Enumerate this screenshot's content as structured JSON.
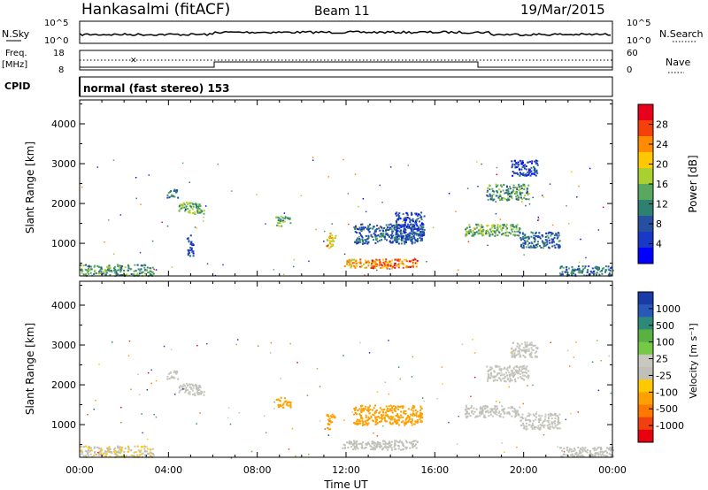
{
  "header": {
    "station": "Hankasalmi (fitACF)",
    "beam": "Beam 11",
    "date": "19/Mar/2015"
  },
  "noise_panel": {
    "left_label": "N.Sky",
    "right_label": "N.Search",
    "y_ticks": [
      "10^5",
      "10^0"
    ]
  },
  "freq_panel": {
    "left_label_1": "Freq.",
    "left_label_2": "[MHz]",
    "left_ticks": [
      "18",
      "8"
    ],
    "right_label": "Nave",
    "right_ticks": [
      "60",
      "0"
    ],
    "cpid_label": "CPID"
  },
  "cpid_text": "normal (fast stereo) 153",
  "x_axis": {
    "title": "Time UT",
    "ticks": [
      "00:00",
      "04:00",
      "08:00",
      "12:00",
      "16:00",
      "20:00",
      "00:00"
    ]
  },
  "y_axis_title": "Slant Range [km]",
  "y_ticks": [
    "4000",
    "3000",
    "2000",
    "1000"
  ],
  "power_colorbar": {
    "label": "Power [dB]",
    "ticks": [
      "28",
      "24",
      "20",
      "16",
      "12",
      "8",
      "4"
    ],
    "colors": [
      "#e8001c",
      "#f5400a",
      "#ff8c00",
      "#ffc800",
      "#a8d030",
      "#5aa860",
      "#2e8070",
      "#2850a0",
      "#1838c8",
      "#0000ff"
    ]
  },
  "velocity_colorbar": {
    "label": "Velocity [m s⁻¹]",
    "ticks": [
      "1000",
      "500",
      "100",
      "25",
      "-25",
      "-100",
      "-500",
      "-1000"
    ],
    "colors": [
      "#1a3aa8",
      "#2858b8",
      "#2e8a78",
      "#5ab040",
      "#78c848",
      "#c8c8c0",
      "#c0c0b8",
      "#ffc800",
      "#ffa000",
      "#ff7800",
      "#f04010",
      "#e80010"
    ]
  },
  "chart_data": [
    {
      "type": "heatmap",
      "title": "",
      "quantity": "Power",
      "ylabel": "Slant Range [km]",
      "xlabel": "",
      "x_range_hours": [
        0,
        24
      ],
      "ylim": [
        180,
        4600
      ],
      "clim": [
        0,
        30
      ],
      "patches": [
        {
          "t": [
            0.0,
            3.3
          ],
          "r": [
            200,
            480
          ],
          "v": 12
        },
        {
          "t": [
            3.9,
            4.4
          ],
          "r": [
            2150,
            2380
          ],
          "v": 10
        },
        {
          "t": [
            4.4,
            5.6
          ],
          "r": [
            1750,
            2050
          ],
          "v": 14
        },
        {
          "t": [
            4.8,
            5.1
          ],
          "r": [
            700,
            1250
          ],
          "v": 6
        },
        {
          "t": [
            8.8,
            9.5
          ],
          "r": [
            1450,
            1700
          ],
          "v": 14
        },
        {
          "t": [
            11.1,
            11.5
          ],
          "r": [
            900,
            1300
          ],
          "v": 20
        },
        {
          "t": [
            11.8,
            13.4
          ],
          "r": [
            400,
            620
          ],
          "v": 20
        },
        {
          "t": [
            13.1,
            15.2
          ],
          "r": [
            380,
            620
          ],
          "v": 24
        },
        {
          "t": [
            12.3,
            15.4
          ],
          "r": [
            1000,
            1500
          ],
          "v": 8
        },
        {
          "t": [
            14.2,
            15.5
          ],
          "r": [
            1100,
            1800
          ],
          "v": 6
        },
        {
          "t": [
            17.3,
            19.8
          ],
          "r": [
            1200,
            1500
          ],
          "v": 14
        },
        {
          "t": [
            18.3,
            20.2
          ],
          "r": [
            2100,
            2500
          ],
          "v": 12
        },
        {
          "t": [
            19.4,
            20.6
          ],
          "r": [
            2700,
            3100
          ],
          "v": 6
        },
        {
          "t": [
            19.8,
            21.6
          ],
          "r": [
            900,
            1300
          ],
          "v": 8
        },
        {
          "t": [
            21.6,
            24.0
          ],
          "r": [
            200,
            450
          ],
          "v": 10
        }
      ]
    },
    {
      "type": "heatmap",
      "title": "",
      "quantity": "Velocity",
      "ylabel": "Slant Range [km]",
      "xlabel": "Time UT",
      "x_range_hours": [
        0,
        24
      ],
      "ylim": [
        180,
        4600
      ],
      "clim": [
        -1000,
        1000
      ],
      "patches": [
        {
          "t": [
            0.0,
            3.3
          ],
          "r": [
            200,
            480
          ],
          "v": -150
        },
        {
          "t": [
            3.9,
            4.4
          ],
          "r": [
            2150,
            2380
          ],
          "v": 0
        },
        {
          "t": [
            4.4,
            5.6
          ],
          "r": [
            1750,
            2050
          ],
          "v": 0
        },
        {
          "t": [
            8.8,
            9.5
          ],
          "r": [
            1450,
            1700
          ],
          "v": -400
        },
        {
          "t": [
            11.1,
            11.5
          ],
          "r": [
            900,
            1300
          ],
          "v": -450
        },
        {
          "t": [
            11.8,
            13.4
          ],
          "r": [
            400,
            620
          ],
          "v": -60
        },
        {
          "t": [
            13.1,
            15.2
          ],
          "r": [
            380,
            620
          ],
          "v": -60
        },
        {
          "t": [
            12.3,
            15.4
          ],
          "r": [
            1000,
            1500
          ],
          "v": -400
        },
        {
          "t": [
            17.3,
            19.8
          ],
          "r": [
            1200,
            1500
          ],
          "v": 0
        },
        {
          "t": [
            18.3,
            20.2
          ],
          "r": [
            2100,
            2500
          ],
          "v": 0
        },
        {
          "t": [
            19.4,
            20.6
          ],
          "r": [
            2700,
            3100
          ],
          "v": 0
        },
        {
          "t": [
            19.8,
            21.6
          ],
          "r": [
            900,
            1300
          ],
          "v": 0
        },
        {
          "t": [
            21.6,
            24.0
          ],
          "r": [
            200,
            450
          ],
          "v": -60
        }
      ]
    }
  ]
}
